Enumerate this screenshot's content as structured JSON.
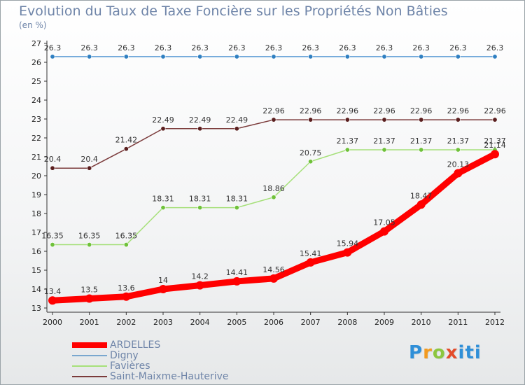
{
  "chart_data": {
    "type": "line",
    "title": "Evolution du Taux de Taxe Foncière sur les Propriétés Non Bâties",
    "subtitle": "(en %)",
    "xlabel": "",
    "ylabel": "",
    "ylim": [
      13,
      27
    ],
    "yticks": [
      13,
      14,
      15,
      16,
      17,
      18,
      19,
      20,
      21,
      22,
      23,
      24,
      25,
      26,
      27
    ],
    "categories": [
      "2000",
      "2001",
      "2002",
      "2003",
      "2004",
      "2005",
      "2006",
      "2007",
      "2008",
      "2009",
      "2010",
      "2011",
      "2012"
    ],
    "grid": false,
    "legend_position": "bottom-left",
    "series": [
      {
        "name": "Digny",
        "color": "#5b9bd5",
        "marker": "#2f7fc1",
        "values": [
          26.3,
          26.3,
          26.3,
          26.3,
          26.3,
          26.3,
          26.3,
          26.3,
          26.3,
          26.3,
          26.3,
          26.3,
          26.3
        ],
        "labels": [
          "26.3",
          "26.3",
          "26.3",
          "26.3",
          "26.3",
          "26.3",
          "26.3",
          "26.3",
          "26.3",
          "26.3",
          "26.3",
          "26.3",
          "26.3"
        ]
      },
      {
        "name": "Saint-Maixme-Hauterive",
        "color": "#7b3b3b",
        "marker": "#5a1f1f",
        "values": [
          20.4,
          20.4,
          21.42,
          22.49,
          22.49,
          22.49,
          22.96,
          22.96,
          22.96,
          22.96,
          22.96,
          22.96,
          22.96
        ],
        "labels": [
          "20.4",
          "20.4",
          "21.42",
          "22.49",
          "22.49",
          "22.49",
          "22.96",
          "22.96",
          "22.96",
          "22.96",
          "22.96",
          "22.96",
          "22.96"
        ]
      },
      {
        "name": "Favières",
        "color": "#a6e07a",
        "marker": "#6fc13a",
        "values": [
          16.35,
          16.35,
          16.35,
          18.31,
          18.31,
          18.31,
          18.86,
          20.75,
          21.37,
          21.37,
          21.37,
          21.37,
          21.37
        ],
        "labels": [
          "16.35",
          "16.35",
          "16.35",
          "18.31",
          "18.31",
          "18.31",
          "18.86",
          "20.75",
          "21.37",
          "21.37",
          "21.37",
          "21.37",
          "21.37"
        ]
      },
      {
        "name": "ARDELLES",
        "color": "#ff0000",
        "marker": "#ff0000",
        "values": [
          13.4,
          13.5,
          13.6,
          14,
          14.2,
          14.41,
          14.56,
          15.41,
          15.94,
          17.05,
          18.47,
          20.13,
          21.14
        ],
        "labels": [
          "13.4",
          "13.5",
          "13.6",
          "14",
          "14.2",
          "14.41",
          "14.56",
          "15.41",
          "15.94",
          "17.05",
          "18.47",
          "20.13",
          "21.14"
        ]
      }
    ]
  },
  "legend": {
    "items": [
      {
        "name": "ARDELLES",
        "color": "#ff0000"
      },
      {
        "name": "Digny",
        "color": "#7aa7cf"
      },
      {
        "name": "Favières",
        "color": "#a6e07a"
      },
      {
        "name": "Saint-Maixme-Hauterive",
        "color": "#7b3b3b"
      }
    ]
  },
  "logo": {
    "p": "P",
    "r": "r",
    "o": "o",
    "x": "x",
    "i": "iti"
  }
}
